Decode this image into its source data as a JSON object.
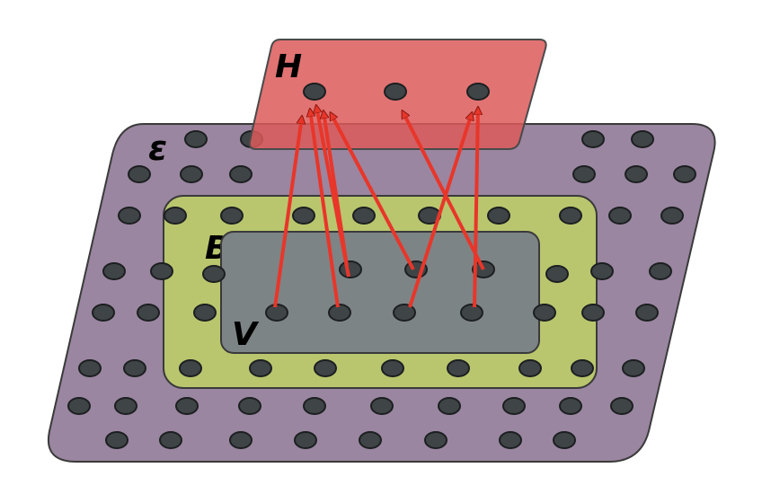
{
  "regions": {
    "environment": {
      "label": "ε",
      "fill": "#9a86a0",
      "stroke": "#3a3a3a"
    },
    "boundary": {
      "label": "B",
      "fill": "#b9c66e",
      "stroke": "#3a3a3a"
    },
    "visible": {
      "label": "V",
      "fill": "#7d8486",
      "stroke": "#3a3a3a"
    },
    "hidden": {
      "label": "H",
      "fill": "#dc5a5a",
      "stroke": "#4a4a4a",
      "opacity": 0.85
    }
  },
  "colors": {
    "node": "#3f4447",
    "node_stroke": "#1c1f20",
    "arrow": "#e8362a",
    "arrow_stroke": "#8a1810"
  },
  "connections": {
    "count": 8,
    "from_region": "V",
    "to_region": "H"
  }
}
